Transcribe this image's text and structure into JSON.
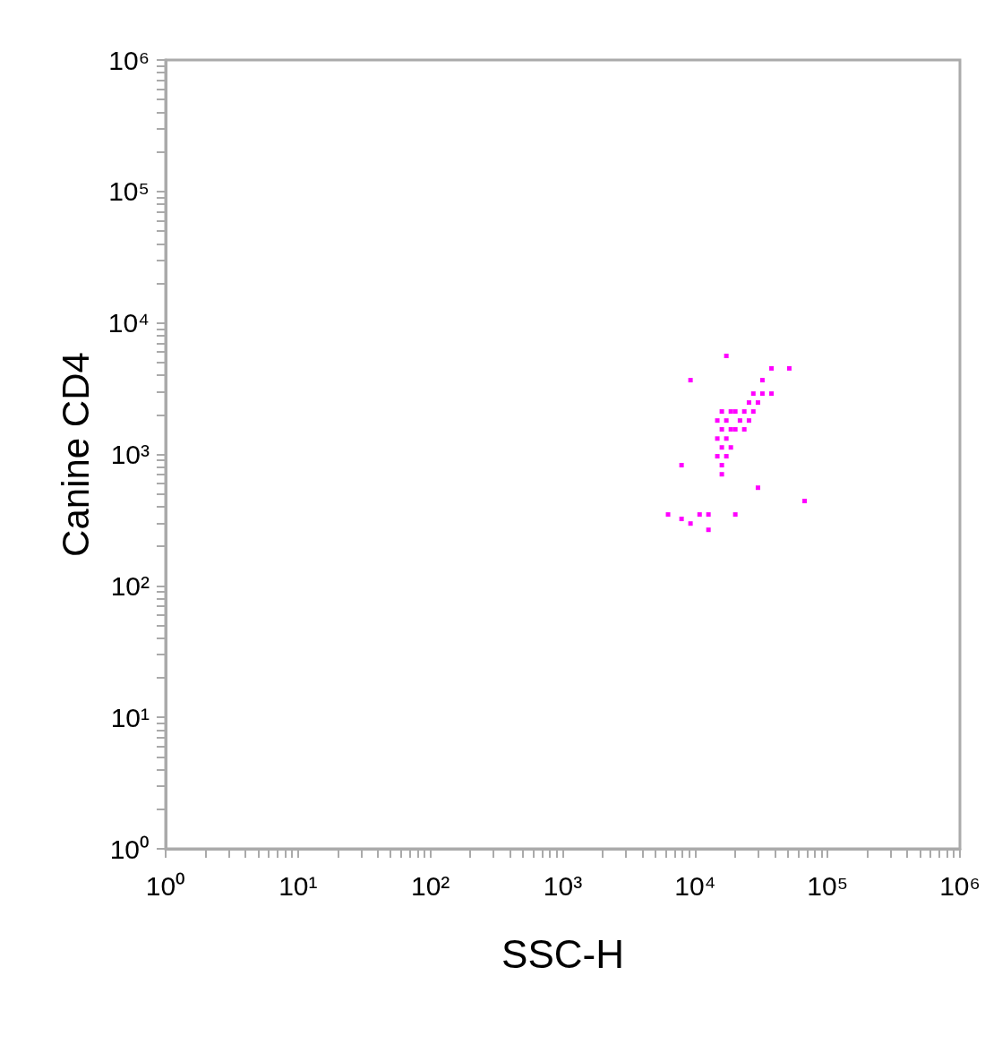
{
  "chart_data": {
    "type": "scatter",
    "xlabel": "SSC-H",
    "ylabel": "Canine CD4",
    "log": "xy",
    "grid": false,
    "marker": "square",
    "xlim": [
      1,
      1000000
    ],
    "ylim": [
      1,
      1000000
    ],
    "xticks": [
      {
        "value": 1,
        "label": "10⁰"
      },
      {
        "value": 10,
        "label": "10¹"
      },
      {
        "value": 100,
        "label": "10²"
      },
      {
        "value": 1000,
        "label": "10³"
      },
      {
        "value": 10000,
        "label": "10⁴"
      },
      {
        "value": 100000,
        "label": "10⁵"
      },
      {
        "value": 1000000,
        "label": "10⁶"
      }
    ],
    "yticks": [
      {
        "value": 1,
        "label": "10⁰"
      },
      {
        "value": 10,
        "label": "10¹"
      },
      {
        "value": 100,
        "label": "10²"
      },
      {
        "value": 1000,
        "label": "10³"
      },
      {
        "value": 10000,
        "label": "10⁴"
      },
      {
        "value": 100000,
        "label": "10⁵"
      },
      {
        "value": 1000000,
        "label": "10⁶"
      }
    ],
    "series": [
      {
        "color": "#ff00ff",
        "x": [
          15900,
          15900,
          15900,
          15900,
          15900,
          14700,
          14700,
          14700,
          17200,
          17200,
          17200,
          18600,
          18600,
          18600,
          20100,
          20100,
          21800,
          23500,
          23500,
          25500,
          25500,
          27500,
          27500,
          29800,
          32200,
          32200,
          37700,
          17200,
          9220,
          37700,
          51400,
          7890,
          29800,
          20100,
          67100,
          6240,
          7890,
          9220,
          12600,
          10800,
          12600
        ],
        "values": [
          2120,
          1550,
          1130,
          828,
          706,
          1810,
          1320,
          968,
          1810,
          1320,
          968,
          2120,
          1550,
          1130,
          2120,
          1550,
          1810,
          2120,
          1550,
          2480,
          1810,
          2900,
          2120,
          2480,
          2900,
          3670,
          2900,
          5610,
          3670,
          4510,
          4510,
          828,
          558,
          349,
          442,
          349,
          323,
          298,
          267,
          349,
          349
        ]
      }
    ]
  }
}
